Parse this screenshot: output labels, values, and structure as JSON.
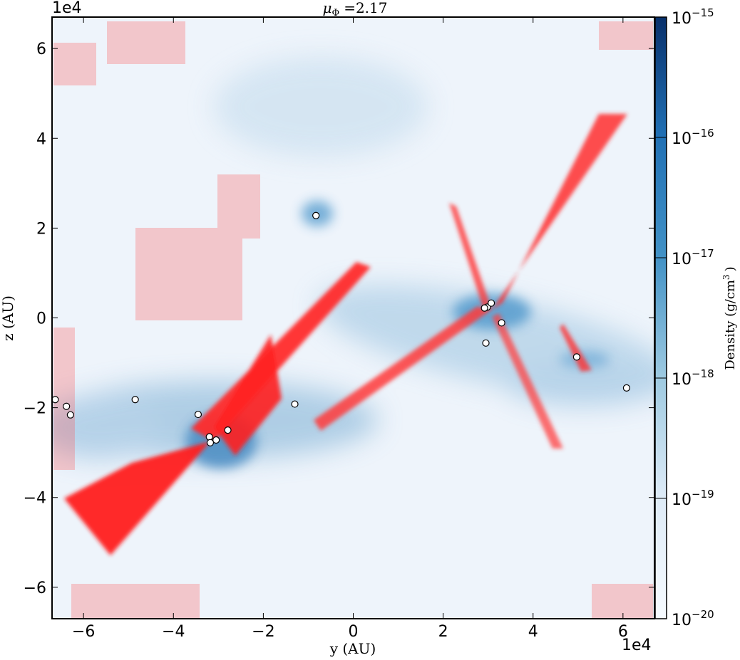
{
  "chart_data": {
    "type": "heatmap",
    "title_symbol": "μ",
    "title_subscript": "Φ",
    "title_value": "=2.17",
    "xlabel": "y  (AU)",
    "ylabel": "z  (AU)",
    "x_multiplier": "1e4",
    "y_multiplier": "1e4",
    "xlim": [
      -6.7,
      6.7
    ],
    "ylim": [
      -6.7,
      6.7
    ],
    "x_ticks": [
      -6,
      -4,
      -2,
      0,
      2,
      4,
      6
    ],
    "y_ticks": [
      -6,
      -4,
      -2,
      0,
      2,
      4,
      6
    ],
    "x_tick_labels": [
      "−6",
      "−4",
      "−2",
      "0",
      "2",
      "4",
      "6"
    ],
    "y_tick_labels": [
      "−6",
      "−4",
      "−2",
      "0",
      "2",
      "4",
      "6"
    ],
    "colorbar": {
      "label": "Density  (g/cm",
      "label_exponent": "3",
      "label_close": ")",
      "scale": "log",
      "range": [
        1e-20,
        1e-15
      ],
      "tick_base": "10",
      "tick_exponents": [
        "−20",
        "−19",
        "−18",
        "−17",
        "−16",
        "−15"
      ],
      "tick_log_values": [
        -20,
        -19,
        -18,
        -17,
        -16,
        -15
      ],
      "color_low": "#f7fbff",
      "color_high": "#08306b"
    },
    "overlay_color": "#ff2020",
    "sinks": [
      {
        "x": -0.83,
        "y": 2.28
      },
      {
        "x": -6.63,
        "y": -1.82
      },
      {
        "x": -6.38,
        "y": -1.97
      },
      {
        "x": -6.29,
        "y": -2.16
      },
      {
        "x": -4.85,
        "y": -1.82
      },
      {
        "x": -3.45,
        "y": -2.15
      },
      {
        "x": -3.2,
        "y": -2.65
      },
      {
        "x": -3.05,
        "y": -2.72
      },
      {
        "x": -3.18,
        "y": -2.78
      },
      {
        "x": -2.79,
        "y": -2.5
      },
      {
        "x": -1.3,
        "y": -1.92
      },
      {
        "x": 2.98,
        "y": 0.24
      },
      {
        "x": 2.92,
        "y": 0.22
      },
      {
        "x": 3.07,
        "y": 0.33
      },
      {
        "x": 3.3,
        "y": -0.11
      },
      {
        "x": 2.95,
        "y": -0.56
      },
      {
        "x": 4.97,
        "y": -0.87
      },
      {
        "x": 6.08,
        "y": -1.56
      }
    ]
  }
}
